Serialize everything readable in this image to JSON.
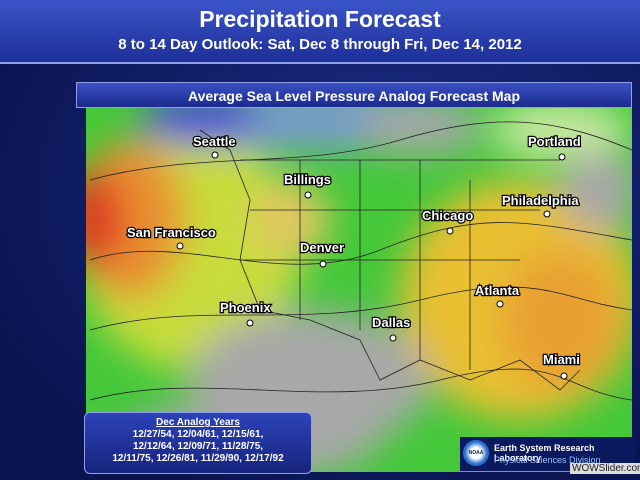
{
  "header": {
    "title": "Precipitation Forecast",
    "subtitle": "8 to 14 Day Outlook: Sat, Dec 8 through Fri, Dec 14, 2012"
  },
  "map": {
    "title": "Average Sea Level Pressure Analog Forecast Map",
    "cities": [
      "Seattle",
      "Portland",
      "Billings",
      "Chicago",
      "Philadelphia",
      "San Francisco",
      "Denver",
      "Atlanta",
      "Phoenix",
      "Dallas",
      "Miami"
    ]
  },
  "analog_box": {
    "title": "Dec Analog Years",
    "lines": [
      "12/27/54, 12/04/61, 12/15/61,",
      "12/12/64, 12/09/71, 11/28/75,",
      "12/11/75, 12/26/81, 11/29/90, 12/17/92"
    ]
  },
  "logo": {
    "emblem": "NOAA",
    "name": "Earth System Research Laboratory",
    "division": "Physical Sciences Division"
  },
  "watermark": "WOWSlider.com"
}
